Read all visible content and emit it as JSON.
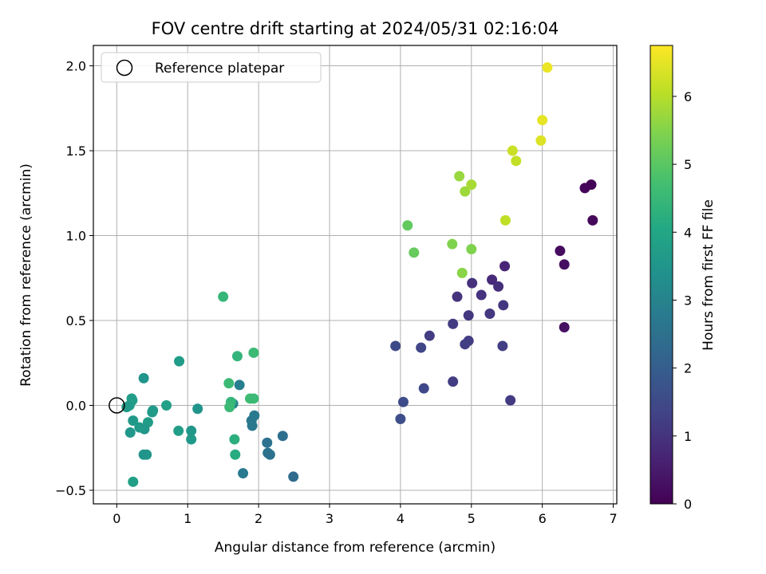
{
  "chart_data": {
    "type": "scatter",
    "title": "FOV centre drift starting at 2024/05/31 02:16:04",
    "xlabel": "Angular distance from reference (arcmin)",
    "ylabel": "Rotation from reference (arcmin)",
    "xlim": [
      -0.33,
      7.05
    ],
    "ylim": [
      -0.58,
      2.12
    ],
    "xticks": [
      0,
      1,
      2,
      3,
      4,
      5,
      6,
      7
    ],
    "xtick_labels": [
      "0",
      "1",
      "2",
      "3",
      "4",
      "5",
      "6",
      "7"
    ],
    "yticks": [
      -0.5,
      0.0,
      0.5,
      1.0,
      1.5,
      2.0
    ],
    "ytick_labels": [
      "−0.5",
      "0.0",
      "0.5",
      "1.0",
      "1.5",
      "2.0"
    ],
    "grid": true,
    "legend": {
      "position": "upper-left",
      "entries": [
        "Reference platepar"
      ]
    },
    "reference_point": {
      "x": 0.0,
      "y": 0.0,
      "marker": "open-circle"
    },
    "colorbar": {
      "label": "Hours from first FF file",
      "colormap": "viridis",
      "range": [
        0,
        6.75
      ],
      "ticks": [
        0,
        1,
        2,
        3,
        4,
        5,
        6
      ],
      "tick_labels": [
        "0",
        "1",
        "2",
        "3",
        "4",
        "5",
        "6"
      ]
    },
    "points": [
      {
        "x": 6.69,
        "y": 1.3,
        "t": 0.05
      },
      {
        "x": 6.6,
        "y": 1.28,
        "t": 0.1
      },
      {
        "x": 6.71,
        "y": 1.09,
        "t": 0.15
      },
      {
        "x": 6.25,
        "y": 0.91,
        "t": 0.2
      },
      {
        "x": 6.31,
        "y": 0.83,
        "t": 0.25
      },
      {
        "x": 6.31,
        "y": 0.46,
        "t": 0.3
      },
      {
        "x": 5.47,
        "y": 0.82,
        "t": 0.7
      },
      {
        "x": 5.29,
        "y": 0.74,
        "t": 0.8
      },
      {
        "x": 5.38,
        "y": 0.7,
        "t": 0.9
      },
      {
        "x": 5.01,
        "y": 0.72,
        "t": 0.95
      },
      {
        "x": 5.14,
        "y": 0.65,
        "t": 1.0
      },
      {
        "x": 4.8,
        "y": 0.64,
        "t": 1.0
      },
      {
        "x": 5.45,
        "y": 0.59,
        "t": 1.05
      },
      {
        "x": 4.96,
        "y": 0.53,
        "t": 1.1
      },
      {
        "x": 5.26,
        "y": 0.54,
        "t": 1.1
      },
      {
        "x": 4.74,
        "y": 0.48,
        "t": 1.15
      },
      {
        "x": 4.41,
        "y": 0.41,
        "t": 1.2
      },
      {
        "x": 4.96,
        "y": 0.38,
        "t": 1.2
      },
      {
        "x": 4.91,
        "y": 0.36,
        "t": 1.25
      },
      {
        "x": 5.44,
        "y": 0.35,
        "t": 1.25
      },
      {
        "x": 3.93,
        "y": 0.35,
        "t": 1.5
      },
      {
        "x": 4.29,
        "y": 0.34,
        "t": 1.4
      },
      {
        "x": 4.74,
        "y": 0.14,
        "t": 1.2
      },
      {
        "x": 4.33,
        "y": 0.1,
        "t": 1.45
      },
      {
        "x": 4.04,
        "y": 0.02,
        "t": 1.55
      },
      {
        "x": 5.55,
        "y": 0.03,
        "t": 1.15
      },
      {
        "x": 4.0,
        "y": -0.08,
        "t": 1.6
      },
      {
        "x": 2.49,
        "y": -0.42,
        "t": 2.35
      },
      {
        "x": 2.34,
        "y": -0.18,
        "t": 2.45
      },
      {
        "x": 2.12,
        "y": -0.22,
        "t": 2.55
      },
      {
        "x": 2.13,
        "y": -0.28,
        "t": 2.55
      },
      {
        "x": 2.16,
        "y": -0.29,
        "t": 2.5
      },
      {
        "x": 1.9,
        "y": -0.09,
        "t": 2.7
      },
      {
        "x": 1.91,
        "y": -0.12,
        "t": 2.7
      },
      {
        "x": 1.94,
        "y": -0.06,
        "t": 2.75
      },
      {
        "x": 1.73,
        "y": 0.12,
        "t": 2.85
      },
      {
        "x": 1.78,
        "y": -0.4,
        "t": 2.75
      },
      {
        "x": 1.64,
        "y": 0.01,
        "t": 3.0
      },
      {
        "x": 1.14,
        "y": -0.02,
        "t": 3.45
      },
      {
        "x": 1.05,
        "y": -0.15,
        "t": 3.55
      },
      {
        "x": 1.05,
        "y": -0.2,
        "t": 3.6
      },
      {
        "x": 0.88,
        "y": 0.26,
        "t": 3.7
      },
      {
        "x": 0.87,
        "y": -0.15,
        "t": 3.75
      },
      {
        "x": 0.7,
        "y": 0.0,
        "t": 3.8
      },
      {
        "x": 0.51,
        "y": -0.03,
        "t": 3.65
      },
      {
        "x": 0.5,
        "y": -0.04,
        "t": 3.65
      },
      {
        "x": 0.44,
        "y": -0.1,
        "t": 3.7
      },
      {
        "x": 0.39,
        "y": -0.14,
        "t": 3.55
      },
      {
        "x": 0.32,
        "y": -0.13,
        "t": 3.65
      },
      {
        "x": 0.42,
        "y": -0.29,
        "t": 3.55
      },
      {
        "x": 0.38,
        "y": -0.29,
        "t": 3.5
      },
      {
        "x": 0.38,
        "y": 0.16,
        "t": 3.5
      },
      {
        "x": 0.22,
        "y": 0.03,
        "t": 3.7
      },
      {
        "x": 0.21,
        "y": 0.04,
        "t": 3.75
      },
      {
        "x": 0.18,
        "y": 0.0,
        "t": 3.7
      },
      {
        "x": 0.14,
        "y": -0.01,
        "t": 3.65
      },
      {
        "x": 0.23,
        "y": -0.09,
        "t": 3.6
      },
      {
        "x": 0.19,
        "y": -0.16,
        "t": 3.55
      },
      {
        "x": 0.23,
        "y": -0.45,
        "t": 3.8
      },
      {
        "x": 1.5,
        "y": 0.64,
        "t": 4.45
      },
      {
        "x": 1.7,
        "y": 0.29,
        "t": 4.4
      },
      {
        "x": 1.93,
        "y": 0.31,
        "t": 4.55
      },
      {
        "x": 1.58,
        "y": 0.13,
        "t": 4.55
      },
      {
        "x": 1.61,
        "y": 0.02,
        "t": 4.45
      },
      {
        "x": 1.59,
        "y": -0.01,
        "t": 4.55
      },
      {
        "x": 1.88,
        "y": 0.04,
        "t": 4.65
      },
      {
        "x": 1.93,
        "y": 0.04,
        "t": 4.55
      },
      {
        "x": 1.66,
        "y": -0.2,
        "t": 4.25
      },
      {
        "x": 1.67,
        "y": -0.29,
        "t": 4.15
      },
      {
        "x": 4.1,
        "y": 1.06,
        "t": 5.1
      },
      {
        "x": 4.19,
        "y": 0.9,
        "t": 5.15
      },
      {
        "x": 4.73,
        "y": 0.95,
        "t": 5.45
      },
      {
        "x": 5.0,
        "y": 0.92,
        "t": 5.45
      },
      {
        "x": 4.87,
        "y": 0.78,
        "t": 5.55
      },
      {
        "x": 4.83,
        "y": 1.35,
        "t": 5.7
      },
      {
        "x": 4.91,
        "y": 1.26,
        "t": 5.75
      },
      {
        "x": 5.0,
        "y": 1.3,
        "t": 5.85
      },
      {
        "x": 5.48,
        "y": 1.09,
        "t": 6.1
      },
      {
        "x": 5.58,
        "y": 1.5,
        "t": 6.2
      },
      {
        "x": 5.63,
        "y": 1.44,
        "t": 6.15
      },
      {
        "x": 5.98,
        "y": 1.56,
        "t": 6.4
      },
      {
        "x": 6.0,
        "y": 1.68,
        "t": 6.5
      },
      {
        "x": 6.07,
        "y": 1.99,
        "t": 6.55
      }
    ]
  }
}
